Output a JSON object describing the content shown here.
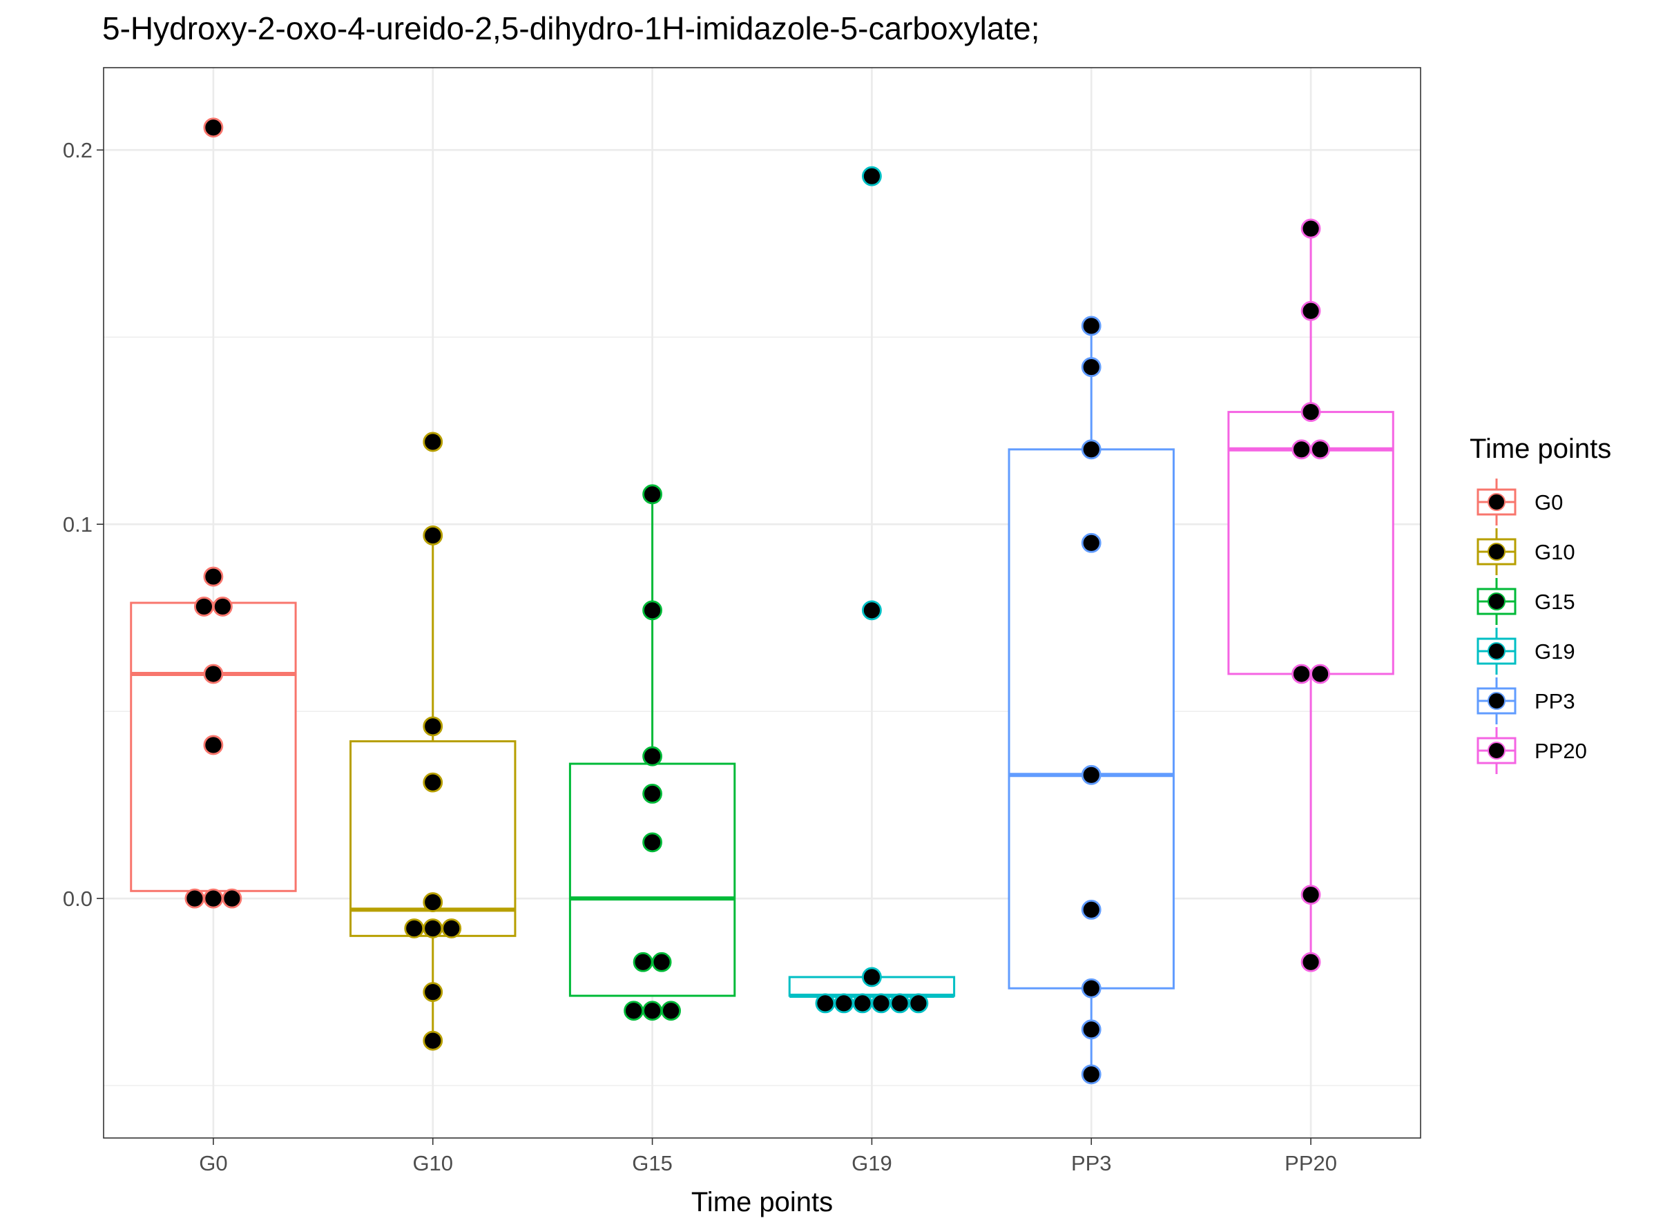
{
  "chart_data": {
    "type": "box",
    "title": "5-Hydroxy-2-oxo-4-ureido-2,5-dihydro-1H-imidazole-5-carboxylate;",
    "xlabel": "Time points",
    "ylabel": "",
    "ylim": [
      -0.064,
      0.222
    ],
    "yticks": [
      0.0,
      0.1,
      0.2
    ],
    "ytick_labels": [
      "0.0",
      "0.1",
      "0.2"
    ],
    "grid": true,
    "legend": {
      "title": "Time points",
      "position": "right"
    },
    "categories": [
      "G0",
      "G10",
      "G15",
      "G19",
      "PP3",
      "PP20"
    ],
    "series": [
      {
        "name": "G0",
        "color": "#F8766D",
        "box": {
          "q1": 0.002,
          "median": 0.06,
          "q3": 0.079,
          "whisker_low": 0.002,
          "whisker_high": 0.079
        },
        "points": [
          0.206,
          0.086,
          0.078,
          0.078,
          0.06,
          0.041,
          0.0,
          0.0,
          0.0
        ]
      },
      {
        "name": "G10",
        "color": "#B79F00",
        "box": {
          "q1": -0.01,
          "median": -0.003,
          "q3": 0.042,
          "whisker_low": -0.038,
          "whisker_high": 0.097
        },
        "points": [
          0.122,
          0.097,
          0.046,
          0.031,
          -0.001,
          -0.008,
          -0.008,
          -0.008,
          -0.025,
          -0.038
        ]
      },
      {
        "name": "G15",
        "color": "#00BA38",
        "box": {
          "q1": -0.026,
          "median": 0.0,
          "q3": 0.036,
          "whisker_low": -0.026,
          "whisker_high": 0.108
        },
        "points": [
          0.108,
          0.077,
          0.038,
          0.028,
          0.015,
          -0.017,
          -0.017,
          -0.03,
          -0.03,
          -0.03
        ]
      },
      {
        "name": "G19",
        "color": "#00BFC4",
        "box": {
          "q1": -0.026,
          "median": -0.026,
          "q3": -0.021,
          "whisker_low": -0.026,
          "whisker_high": -0.021
        },
        "points": [
          0.193,
          0.077,
          -0.021,
          -0.028,
          -0.028,
          -0.028,
          -0.028,
          -0.028,
          -0.028
        ]
      },
      {
        "name": "PP3",
        "color": "#619CFF",
        "box": {
          "q1": -0.024,
          "median": 0.033,
          "q3": 0.12,
          "whisker_low": -0.047,
          "whisker_high": 0.153
        },
        "points": [
          0.153,
          0.142,
          0.12,
          0.095,
          0.033,
          -0.003,
          -0.024,
          -0.035,
          -0.047
        ]
      },
      {
        "name": "PP20",
        "color": "#F564E3",
        "box": {
          "q1": 0.06,
          "median": 0.12,
          "q3": 0.13,
          "whisker_low": -0.017,
          "whisker_high": 0.179
        },
        "points": [
          0.179,
          0.157,
          0.13,
          0.12,
          0.12,
          0.06,
          0.06,
          0.001,
          -0.017
        ]
      }
    ]
  }
}
